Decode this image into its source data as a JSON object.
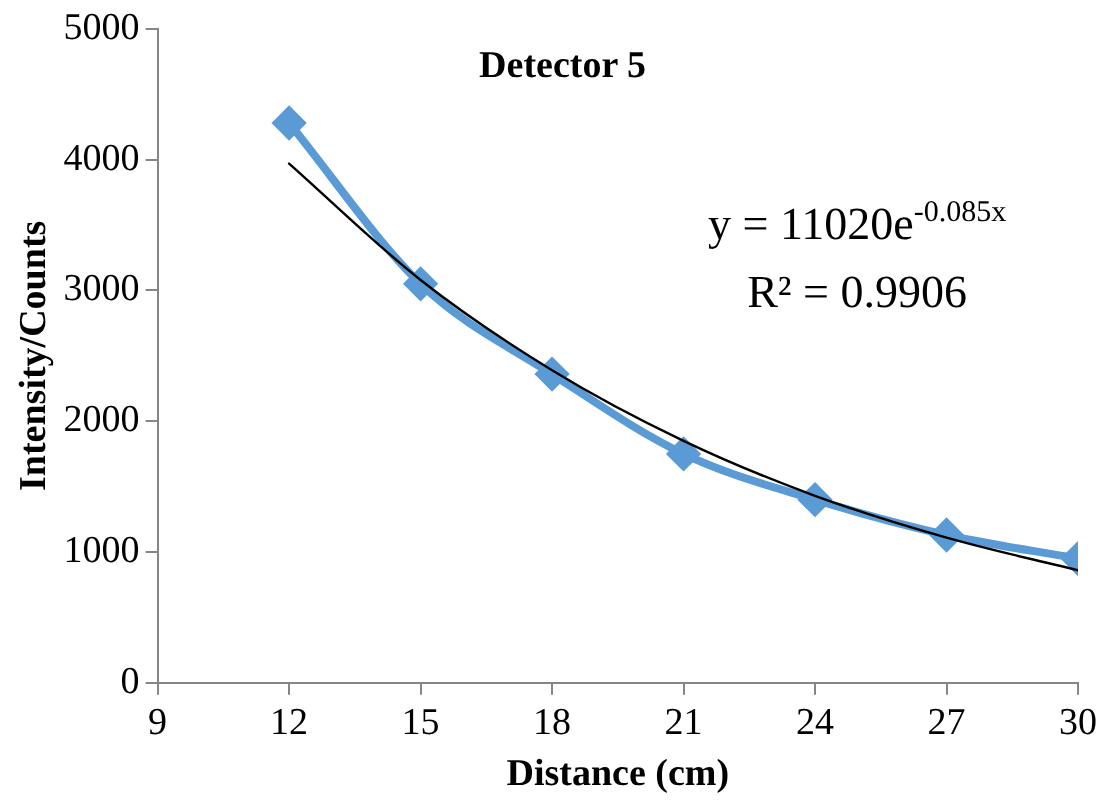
{
  "chart_data": {
    "type": "line",
    "title": "Detector 5",
    "xlabel": "Distance (cm)",
    "ylabel": "Intensity/Counts",
    "xlim": [
      9,
      30
    ],
    "xticks": [
      9,
      12,
      15,
      18,
      21,
      24,
      27,
      30
    ],
    "ylim": [
      0,
      5000
    ],
    "yticks": [
      0,
      1000,
      2000,
      3000,
      4000,
      5000
    ],
    "grid": false,
    "legend": false,
    "marker": "diamond",
    "line_style": "solid",
    "series": [
      {
        "color": "#5b9bd5",
        "x": [
          12,
          15,
          18,
          21,
          24,
          27,
          30
        ],
        "values": [
          4280,
          3050,
          2360,
          1750,
          1400,
          1130,
          950
        ]
      },
      {
        "type": "line",
        "marker": "none",
        "color": "#000000",
        "x": [
          12,
          15,
          18,
          21,
          24,
          27,
          30
        ],
        "values": [
          3970,
          3080,
          2390,
          1850,
          1430,
          1110,
          860
        ]
      }
    ],
    "annotations": [
      "y = 11020e$^{-0.085x}$",
      "R² = 0.9906"
    ]
  }
}
